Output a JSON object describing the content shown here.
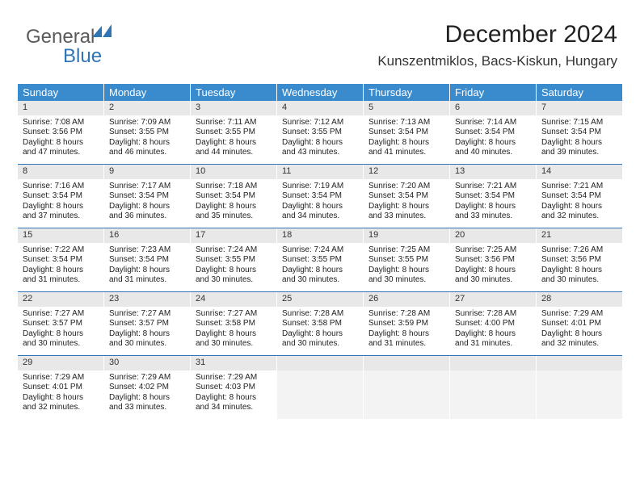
{
  "brand": {
    "part1": "General",
    "part2": "Blue"
  },
  "title": "December 2024",
  "location": "Kunszentmiklos, Bacs-Kiskun, Hungary",
  "colors": {
    "header_bg": "#3a8bce",
    "header_text": "#ffffff",
    "rule": "#2f74b5",
    "daynum_bg": "#e8e8e8",
    "brand_gray": "#5a5a5a",
    "brand_blue": "#2f74b5",
    "empty_bg": "#f3f3f3"
  },
  "day_headers": [
    "Sunday",
    "Monday",
    "Tuesday",
    "Wednesday",
    "Thursday",
    "Friday",
    "Saturday"
  ],
  "weeks": [
    [
      {
        "n": "1",
        "sr": "Sunrise: 7:08 AM",
        "ss": "Sunset: 3:56 PM",
        "d1": "Daylight: 8 hours",
        "d2": "and 47 minutes."
      },
      {
        "n": "2",
        "sr": "Sunrise: 7:09 AM",
        "ss": "Sunset: 3:55 PM",
        "d1": "Daylight: 8 hours",
        "d2": "and 46 minutes."
      },
      {
        "n": "3",
        "sr": "Sunrise: 7:11 AM",
        "ss": "Sunset: 3:55 PM",
        "d1": "Daylight: 8 hours",
        "d2": "and 44 minutes."
      },
      {
        "n": "4",
        "sr": "Sunrise: 7:12 AM",
        "ss": "Sunset: 3:55 PM",
        "d1": "Daylight: 8 hours",
        "d2": "and 43 minutes."
      },
      {
        "n": "5",
        "sr": "Sunrise: 7:13 AM",
        "ss": "Sunset: 3:54 PM",
        "d1": "Daylight: 8 hours",
        "d2": "and 41 minutes."
      },
      {
        "n": "6",
        "sr": "Sunrise: 7:14 AM",
        "ss": "Sunset: 3:54 PM",
        "d1": "Daylight: 8 hours",
        "d2": "and 40 minutes."
      },
      {
        "n": "7",
        "sr": "Sunrise: 7:15 AM",
        "ss": "Sunset: 3:54 PM",
        "d1": "Daylight: 8 hours",
        "d2": "and 39 minutes."
      }
    ],
    [
      {
        "n": "8",
        "sr": "Sunrise: 7:16 AM",
        "ss": "Sunset: 3:54 PM",
        "d1": "Daylight: 8 hours",
        "d2": "and 37 minutes."
      },
      {
        "n": "9",
        "sr": "Sunrise: 7:17 AM",
        "ss": "Sunset: 3:54 PM",
        "d1": "Daylight: 8 hours",
        "d2": "and 36 minutes."
      },
      {
        "n": "10",
        "sr": "Sunrise: 7:18 AM",
        "ss": "Sunset: 3:54 PM",
        "d1": "Daylight: 8 hours",
        "d2": "and 35 minutes."
      },
      {
        "n": "11",
        "sr": "Sunrise: 7:19 AM",
        "ss": "Sunset: 3:54 PM",
        "d1": "Daylight: 8 hours",
        "d2": "and 34 minutes."
      },
      {
        "n": "12",
        "sr": "Sunrise: 7:20 AM",
        "ss": "Sunset: 3:54 PM",
        "d1": "Daylight: 8 hours",
        "d2": "and 33 minutes."
      },
      {
        "n": "13",
        "sr": "Sunrise: 7:21 AM",
        "ss": "Sunset: 3:54 PM",
        "d1": "Daylight: 8 hours",
        "d2": "and 33 minutes."
      },
      {
        "n": "14",
        "sr": "Sunrise: 7:21 AM",
        "ss": "Sunset: 3:54 PM",
        "d1": "Daylight: 8 hours",
        "d2": "and 32 minutes."
      }
    ],
    [
      {
        "n": "15",
        "sr": "Sunrise: 7:22 AM",
        "ss": "Sunset: 3:54 PM",
        "d1": "Daylight: 8 hours",
        "d2": "and 31 minutes."
      },
      {
        "n": "16",
        "sr": "Sunrise: 7:23 AM",
        "ss": "Sunset: 3:54 PM",
        "d1": "Daylight: 8 hours",
        "d2": "and 31 minutes."
      },
      {
        "n": "17",
        "sr": "Sunrise: 7:24 AM",
        "ss": "Sunset: 3:55 PM",
        "d1": "Daylight: 8 hours",
        "d2": "and 30 minutes."
      },
      {
        "n": "18",
        "sr": "Sunrise: 7:24 AM",
        "ss": "Sunset: 3:55 PM",
        "d1": "Daylight: 8 hours",
        "d2": "and 30 minutes."
      },
      {
        "n": "19",
        "sr": "Sunrise: 7:25 AM",
        "ss": "Sunset: 3:55 PM",
        "d1": "Daylight: 8 hours",
        "d2": "and 30 minutes."
      },
      {
        "n": "20",
        "sr": "Sunrise: 7:25 AM",
        "ss": "Sunset: 3:56 PM",
        "d1": "Daylight: 8 hours",
        "d2": "and 30 minutes."
      },
      {
        "n": "21",
        "sr": "Sunrise: 7:26 AM",
        "ss": "Sunset: 3:56 PM",
        "d1": "Daylight: 8 hours",
        "d2": "and 30 minutes."
      }
    ],
    [
      {
        "n": "22",
        "sr": "Sunrise: 7:27 AM",
        "ss": "Sunset: 3:57 PM",
        "d1": "Daylight: 8 hours",
        "d2": "and 30 minutes."
      },
      {
        "n": "23",
        "sr": "Sunrise: 7:27 AM",
        "ss": "Sunset: 3:57 PM",
        "d1": "Daylight: 8 hours",
        "d2": "and 30 minutes."
      },
      {
        "n": "24",
        "sr": "Sunrise: 7:27 AM",
        "ss": "Sunset: 3:58 PM",
        "d1": "Daylight: 8 hours",
        "d2": "and 30 minutes."
      },
      {
        "n": "25",
        "sr": "Sunrise: 7:28 AM",
        "ss": "Sunset: 3:58 PM",
        "d1": "Daylight: 8 hours",
        "d2": "and 30 minutes."
      },
      {
        "n": "26",
        "sr": "Sunrise: 7:28 AM",
        "ss": "Sunset: 3:59 PM",
        "d1": "Daylight: 8 hours",
        "d2": "and 31 minutes."
      },
      {
        "n": "27",
        "sr": "Sunrise: 7:28 AM",
        "ss": "Sunset: 4:00 PM",
        "d1": "Daylight: 8 hours",
        "d2": "and 31 minutes."
      },
      {
        "n": "28",
        "sr": "Sunrise: 7:29 AM",
        "ss": "Sunset: 4:01 PM",
        "d1": "Daylight: 8 hours",
        "d2": "and 32 minutes."
      }
    ],
    [
      {
        "n": "29",
        "sr": "Sunrise: 7:29 AM",
        "ss": "Sunset: 4:01 PM",
        "d1": "Daylight: 8 hours",
        "d2": "and 32 minutes."
      },
      {
        "n": "30",
        "sr": "Sunrise: 7:29 AM",
        "ss": "Sunset: 4:02 PM",
        "d1": "Daylight: 8 hours",
        "d2": "and 33 minutes."
      },
      {
        "n": "31",
        "sr": "Sunrise: 7:29 AM",
        "ss": "Sunset: 4:03 PM",
        "d1": "Daylight: 8 hours",
        "d2": "and 34 minutes."
      },
      {
        "empty": true
      },
      {
        "empty": true
      },
      {
        "empty": true
      },
      {
        "empty": true
      }
    ]
  ]
}
